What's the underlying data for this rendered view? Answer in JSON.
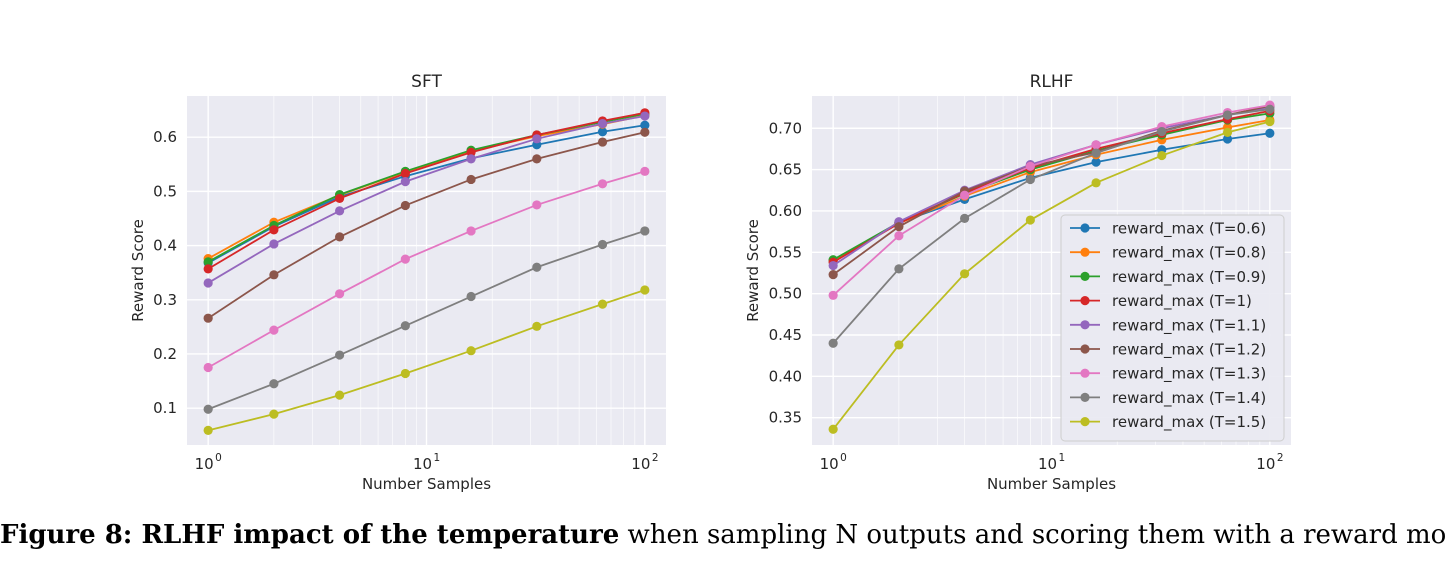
{
  "caption": {
    "label": "Figure 8: RLHF impact of the temperature",
    "text": " when sampling N outputs and scoring them with a reward model."
  },
  "colors": {
    "plot_bg": "#eaeaf2",
    "grid": "#ffffff"
  },
  "chart_data": [
    {
      "type": "line",
      "title": "SFT",
      "xlabel": "Number Samples",
      "ylabel": "Reward Score",
      "xscale": "log",
      "xlim": [
        0.8,
        125
      ],
      "ylim": [
        0.032,
        0.676
      ],
      "yticks": [
        0.1,
        0.2,
        0.3,
        0.4,
        0.5,
        0.6
      ],
      "ytick_labels": [
        "0.1",
        "0.2",
        "0.3",
        "0.4",
        "0.5",
        "0.6"
      ],
      "xticks": [
        1,
        10,
        100
      ],
      "xtick_labels": [
        "10",
        "10",
        "10"
      ],
      "xtick_exponents": [
        "0",
        "1",
        "2"
      ],
      "x": [
        1,
        2,
        4,
        8,
        16,
        32,
        64,
        100
      ],
      "legend": false,
      "series": [
        {
          "name": "reward_max (T=0.6)",
          "color": "#1f77b4",
          "values": [
            0.368,
            0.435,
            0.49,
            0.528,
            0.561,
            0.586,
            0.61,
            0.622
          ]
        },
        {
          "name": "reward_max (T=0.8)",
          "color": "#ff7f0e",
          "values": [
            0.376,
            0.443,
            0.493,
            0.536,
            0.574,
            0.602,
            0.624,
            0.64
          ]
        },
        {
          "name": "reward_max (T=0.9)",
          "color": "#2ca02c",
          "values": [
            0.37,
            0.437,
            0.494,
            0.537,
            0.576,
            0.604,
            0.628,
            0.643
          ]
        },
        {
          "name": "reward_max (T=1)",
          "color": "#d62728",
          "values": [
            0.357,
            0.429,
            0.487,
            0.533,
            0.572,
            0.604,
            0.63,
            0.645
          ]
        },
        {
          "name": "reward_max (T=1.1)",
          "color": "#9467bd",
          "values": [
            0.331,
            0.403,
            0.464,
            0.518,
            0.56,
            0.597,
            0.625,
            0.639
          ]
        },
        {
          "name": "reward_max (T=1.2)",
          "color": "#8c564b",
          "values": [
            0.266,
            0.346,
            0.416,
            0.474,
            0.522,
            0.56,
            0.591,
            0.609
          ]
        },
        {
          "name": "reward_max (T=1.3)",
          "color": "#e377c2",
          "values": [
            0.175,
            0.244,
            0.311,
            0.375,
            0.427,
            0.475,
            0.514,
            0.537
          ]
        },
        {
          "name": "reward_max (T=1.4)",
          "color": "#7f7f7f",
          "values": [
            0.098,
            0.145,
            0.198,
            0.252,
            0.306,
            0.36,
            0.402,
            0.427
          ]
        },
        {
          "name": "reward_max (T=1.5)",
          "color": "#bcbd22",
          "values": [
            0.059,
            0.089,
            0.124,
            0.164,
            0.206,
            0.251,
            0.292,
            0.318
          ]
        }
      ]
    },
    {
      "type": "line",
      "title": "RLHF",
      "xlabel": "Number Samples",
      "ylabel": "Reward Score",
      "xscale": "log",
      "xlim": [
        0.8,
        125
      ],
      "ylim": [
        0.317,
        0.739
      ],
      "yticks": [
        0.35,
        0.4,
        0.45,
        0.5,
        0.55,
        0.6,
        0.65,
        0.7
      ],
      "ytick_labels": [
        "0.35",
        "0.40",
        "0.45",
        "0.50",
        "0.55",
        "0.60",
        "0.65",
        "0.70"
      ],
      "xticks": [
        1,
        10,
        100
      ],
      "xtick_labels": [
        "10",
        "10",
        "10"
      ],
      "xtick_exponents": [
        "0",
        "1",
        "2"
      ],
      "x": [
        1,
        2,
        4,
        8,
        16,
        32,
        64,
        100
      ],
      "legend": true,
      "legend_position": "lower right",
      "series": [
        {
          "name": "reward_max (T=0.6)",
          "color": "#1f77b4",
          "values": [
            0.54,
            0.586,
            0.614,
            0.64,
            0.659,
            0.674,
            0.687,
            0.694
          ]
        },
        {
          "name": "reward_max (T=0.8)",
          "color": "#ff7f0e",
          "values": [
            0.54,
            0.585,
            0.618,
            0.647,
            0.668,
            0.686,
            0.701,
            0.71
          ]
        },
        {
          "name": "reward_max (T=0.9)",
          "color": "#2ca02c",
          "values": [
            0.541,
            0.586,
            0.621,
            0.65,
            0.673,
            0.692,
            0.71,
            0.718
          ]
        },
        {
          "name": "reward_max (T=1)",
          "color": "#d62728",
          "values": [
            0.538,
            0.585,
            0.622,
            0.652,
            0.675,
            0.694,
            0.711,
            0.721
          ]
        },
        {
          "name": "reward_max (T=1.1)",
          "color": "#9467bd",
          "values": [
            0.534,
            0.587,
            0.625,
            0.656,
            0.68,
            0.7,
            0.716,
            0.725
          ]
        },
        {
          "name": "reward_max (T=1.2)",
          "color": "#8c564b",
          "values": [
            0.523,
            0.581,
            0.624,
            0.654,
            0.671,
            0.697,
            0.716,
            0.727
          ]
        },
        {
          "name": "reward_max (T=1.3)",
          "color": "#e377c2",
          "values": [
            0.498,
            0.57,
            0.619,
            0.654,
            0.68,
            0.702,
            0.719,
            0.728
          ]
        },
        {
          "name": "reward_max (T=1.4)",
          "color": "#7f7f7f",
          "values": [
            0.44,
            0.53,
            0.591,
            0.638,
            0.67,
            0.696,
            0.716,
            0.723
          ]
        },
        {
          "name": "reward_max (T=1.5)",
          "color": "#bcbd22",
          "values": [
            0.336,
            0.438,
            0.524,
            0.589,
            0.634,
            0.667,
            0.695,
            0.708
          ]
        }
      ]
    }
  ]
}
